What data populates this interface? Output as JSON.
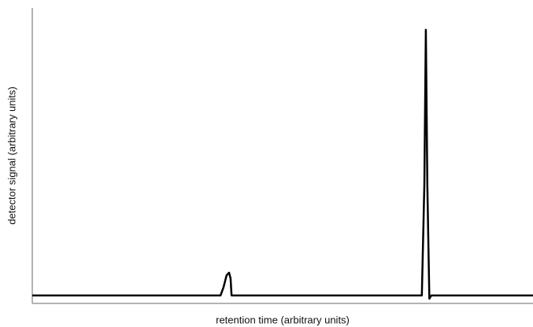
{
  "chart_data": {
    "type": "line",
    "x_label": "retention time (arbitrary units)",
    "y_label": "detector signal (arbitrary units)",
    "x": [
      0,
      37.6,
      38.2,
      38.8,
      39.3,
      39.6,
      39.8,
      77.8,
      78.3,
      78.6,
      78.9,
      79.3,
      79.7,
      100
    ],
    "values": [
      2.7,
      2.7,
      5.5,
      9.5,
      10.4,
      8.5,
      2.7,
      2.7,
      40,
      92.6,
      40,
      1.6,
      2.7,
      2.7
    ],
    "color": "#000000",
    "xlim": [
      0,
      100
    ],
    "ylim": [
      0,
      100
    ],
    "grid": false
  }
}
